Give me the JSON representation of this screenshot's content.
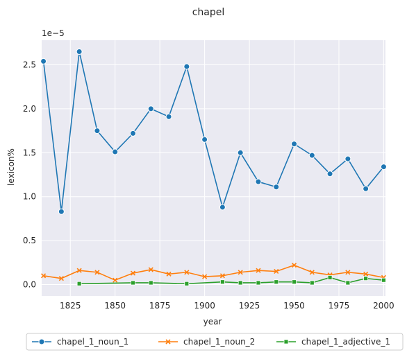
{
  "chart_data": {
    "type": "line",
    "title": "chapel",
    "xlabel": "year",
    "ylabel": "lexicon%",
    "y_multiplier_label": "1e−5",
    "xlim": [
      1809,
      2001
    ],
    "ylim": [
      -0.13,
      2.78
    ],
    "x_ticks": [
      1825,
      1850,
      1875,
      1900,
      1925,
      1950,
      1975,
      2000
    ],
    "y_ticks": [
      0.0,
      0.5,
      1.0,
      1.5,
      2.0,
      2.5
    ],
    "y_tick_labels": [
      "0.0",
      "0.5",
      "1.0",
      "1.5",
      "2.0",
      "2.5"
    ],
    "grid": true,
    "legend_position": "bottom-center",
    "series": [
      {
        "name": "chapel_1_noun_1",
        "color": "#1f77b4",
        "marker": "circle",
        "x": [
          1810,
          1820,
          1830,
          1840,
          1850,
          1860,
          1870,
          1880,
          1890,
          1900,
          1910,
          1920,
          1930,
          1940,
          1950,
          1960,
          1970,
          1980,
          1990,
          2000
        ],
        "values": [
          2.54,
          0.83,
          2.65,
          1.75,
          1.51,
          1.72,
          2.0,
          1.91,
          2.48,
          1.65,
          0.88,
          1.5,
          1.17,
          1.11,
          1.6,
          1.47,
          1.26,
          1.43,
          1.09,
          1.34
        ]
      },
      {
        "name": "chapel_1_noun_2",
        "color": "#ff7f0e",
        "marker": "x",
        "x": [
          1810,
          1820,
          1830,
          1840,
          1850,
          1860,
          1870,
          1880,
          1890,
          1900,
          1910,
          1920,
          1930,
          1940,
          1950,
          1960,
          1970,
          1980,
          1990,
          2000
        ],
        "values": [
          0.1,
          0.07,
          0.16,
          0.14,
          0.05,
          0.13,
          0.17,
          0.12,
          0.14,
          0.09,
          0.1,
          0.14,
          0.16,
          0.15,
          0.22,
          0.14,
          0.11,
          0.14,
          0.12,
          0.08
        ]
      },
      {
        "name": "chapel_1_adjective_1",
        "color": "#2ca02c",
        "marker": "square",
        "x": [
          1830,
          1860,
          1870,
          1890,
          1910,
          1920,
          1930,
          1940,
          1950,
          1960,
          1970,
          1980,
          1990,
          2000
        ],
        "values": [
          0.01,
          0.02,
          0.02,
          0.01,
          0.03,
          0.02,
          0.02,
          0.03,
          0.03,
          0.02,
          0.08,
          0.02,
          0.07,
          0.05
        ]
      }
    ]
  }
}
